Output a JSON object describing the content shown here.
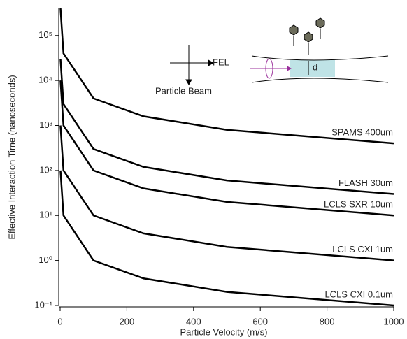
{
  "chart_data": {
    "type": "line",
    "x_label": "Particle Velocity (m/s)",
    "y_label": "Effective Interaction Time (nanoseconds)",
    "x": [
      1,
      10,
      100,
      250,
      500,
      1000
    ],
    "series": [
      {
        "name": "SPAMS 400um",
        "color": "#000000",
        "values": [
          400000,
          40000,
          4000,
          1600,
          800,
          400
        ]
      },
      {
        "name": "FLASH 30um",
        "color": "#000000",
        "values": [
          30000,
          3000,
          300,
          120,
          60,
          30
        ]
      },
      {
        "name": "LCLS SXR 10um",
        "color": "#000000",
        "values": [
          10000,
          1000,
          100,
          40,
          20,
          10
        ]
      },
      {
        "name": "LCLS CXI 1um",
        "color": "#000000",
        "values": [
          1000,
          100,
          10,
          4,
          2,
          1
        ]
      },
      {
        "name": "LCLS CXI 0.1um",
        "color": "#000000",
        "values": [
          100,
          10,
          1,
          0.4,
          0.2,
          0.1
        ]
      }
    ],
    "xlim": [
      0,
      1000
    ],
    "xticks": [
      0,
      200,
      400,
      600,
      800,
      1000
    ],
    "ylim": [
      0.1,
      400000
    ],
    "log_y": true,
    "yticks": [
      {
        "value": 0.1,
        "label": "10⁻¹"
      },
      {
        "value": 1,
        "label": "10⁰"
      },
      {
        "value": 10,
        "label": "10¹"
      },
      {
        "value": 100,
        "label": "10²"
      },
      {
        "value": 1000,
        "label": "10³"
      },
      {
        "value": 10000,
        "label": "10⁴"
      },
      {
        "value": 100000,
        "label": "10⁵"
      }
    ],
    "annotations": [
      "FEL",
      "Particle Beam",
      "d"
    ]
  }
}
